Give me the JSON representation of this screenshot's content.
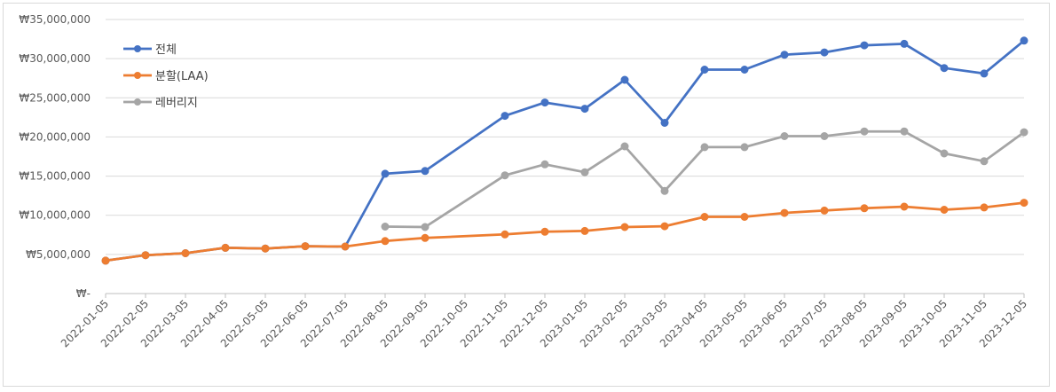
{
  "chart_data": {
    "type": "line",
    "title": "",
    "xlabel": "",
    "ylabel": "",
    "ylim": [
      0,
      35000000
    ],
    "yticks": [
      0,
      5000000,
      10000000,
      15000000,
      20000000,
      25000000,
      30000000,
      35000000
    ],
    "ytick_labels": [
      "₩-",
      "₩5,000,000",
      "₩10,000,000",
      "₩15,000,000",
      "₩20,000,000",
      "₩25,000,000",
      "₩30,000,000",
      "₩35,000,000"
    ],
    "grid": true,
    "legend_position": "top-left",
    "categories": [
      "2022-01-05",
      "2022-02-05",
      "2022-03-05",
      "2022-04-05",
      "2022-05-05",
      "2022-06-05",
      "2022-07-05",
      "2022-08-05",
      "2022-09-05",
      "2022-10-05",
      "2022-11-05",
      "2022-12-05",
      "2023-01-05",
      "2023-02-05",
      "2023-03-05",
      "2023-04-05",
      "2023-05-05",
      "2023-06-05",
      "2023-07-05",
      "2023-08-05",
      "2023-09-05",
      "2023-10-05",
      "2023-11-05",
      "2023-12-05"
    ],
    "series": [
      {
        "name": "전체",
        "color": "#4472c4",
        "values": [
          4200000,
          4900000,
          5150000,
          5850000,
          5750000,
          6050000,
          6000000,
          15300000,
          15650000,
          null,
          22700000,
          24400000,
          23600000,
          27300000,
          21800000,
          28600000,
          28600000,
          30500000,
          30800000,
          31700000,
          31900000,
          28800000,
          28100000,
          32300000
        ]
      },
      {
        "name": "분할(LAA)",
        "color": "#ed7d31",
        "values": [
          4200000,
          4900000,
          5150000,
          5850000,
          5750000,
          6050000,
          6000000,
          6700000,
          7100000,
          null,
          7550000,
          7900000,
          8000000,
          8500000,
          8600000,
          9800000,
          9800000,
          10300000,
          10600000,
          10900000,
          11100000,
          10700000,
          11000000,
          11600000
        ]
      },
      {
        "name": "레버리지",
        "color": "#a5a5a5",
        "values": [
          null,
          null,
          null,
          null,
          null,
          null,
          null,
          8550000,
          8500000,
          null,
          15100000,
          16500000,
          15500000,
          18800000,
          13100000,
          18700000,
          18700000,
          20100000,
          20100000,
          20700000,
          20700000,
          17900000,
          16900000,
          20600000
        ]
      }
    ]
  }
}
